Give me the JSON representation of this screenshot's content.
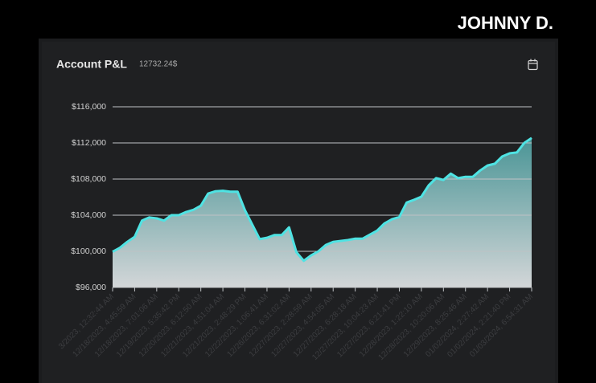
{
  "brand": "JOHNNY D.",
  "chart_data": {
    "type": "area",
    "title": "Account P&L",
    "subtitle": "12732.24$",
    "color": "#4fe3e3",
    "fill_top": "#4a9596",
    "fill_bottom": "#d3d6d8",
    "grid": true,
    "ylim": [
      96000,
      116000
    ],
    "yticks": [
      {
        "value": 96000,
        "label": "$96,000"
      },
      {
        "value": 100000,
        "label": "$100,000"
      },
      {
        "value": 104000,
        "label": "$104,000"
      },
      {
        "value": 108000,
        "label": "$108,000"
      },
      {
        "value": 112000,
        "label": "$112,000"
      },
      {
        "value": 116000,
        "label": "$116,000"
      }
    ],
    "categories": [
      "3/2023, 12:32:44 AM",
      null,
      null,
      "12/18/2023, 4:45:59 AM",
      null,
      null,
      "12/18/2023, 7:01:06 AM",
      null,
      null,
      "12/19/2023, 5:35:42 PM",
      null,
      null,
      "12/20/2023, 6:12:50 AM",
      null,
      null,
      "12/21/2023, 4:51:04 AM",
      null,
      null,
      "12/21/2023, 2:48:29 PM",
      null,
      null,
      "12/22/2023, 1:06:41 AM",
      null,
      null,
      "12/26/2023, 6:31:02 AM",
      null,
      null,
      "12/27/2023, 2:28:59 AM",
      null,
      null,
      "12/27/2023, 4:54:05 AM",
      null,
      null,
      "12/27/2023, 6:28:18 AM",
      null,
      null,
      "12/27/2023, 10:04:23 AM",
      null,
      null,
      "12/27/2023, 6:21:41 PM",
      null,
      null,
      "12/28/2023, 1:22:10 AM",
      null,
      null,
      "12/28/2023, 10:20:06 AM",
      null,
      null,
      "12/29/2023, 8:25:46 AM",
      null,
      null,
      "01/02/2024, 2:27:42 AM",
      null,
      null,
      "01/02/2024, 2:21:40 PM",
      null,
      null,
      "01/03/2024, 6:54:31 AM"
    ],
    "values": [
      99950,
      100400,
      101050,
      101600,
      103400,
      103750,
      103650,
      103400,
      104000,
      104000,
      104350,
      104600,
      105050,
      106400,
      106650,
      106700,
      106600,
      106600,
      104550,
      102950,
      101350,
      101500,
      101800,
      101800,
      102650,
      99900,
      98950,
      99550,
      100000,
      100700,
      101050,
      101150,
      101250,
      101400,
      101400,
      101850,
      102300,
      103100,
      103550,
      103800,
      105400,
      105700,
      106050,
      107300,
      108100,
      107900,
      108600,
      108100,
      108250,
      108250,
      108950,
      109500,
      109700,
      110500,
      110850,
      110950,
      112000,
      112550
    ]
  }
}
